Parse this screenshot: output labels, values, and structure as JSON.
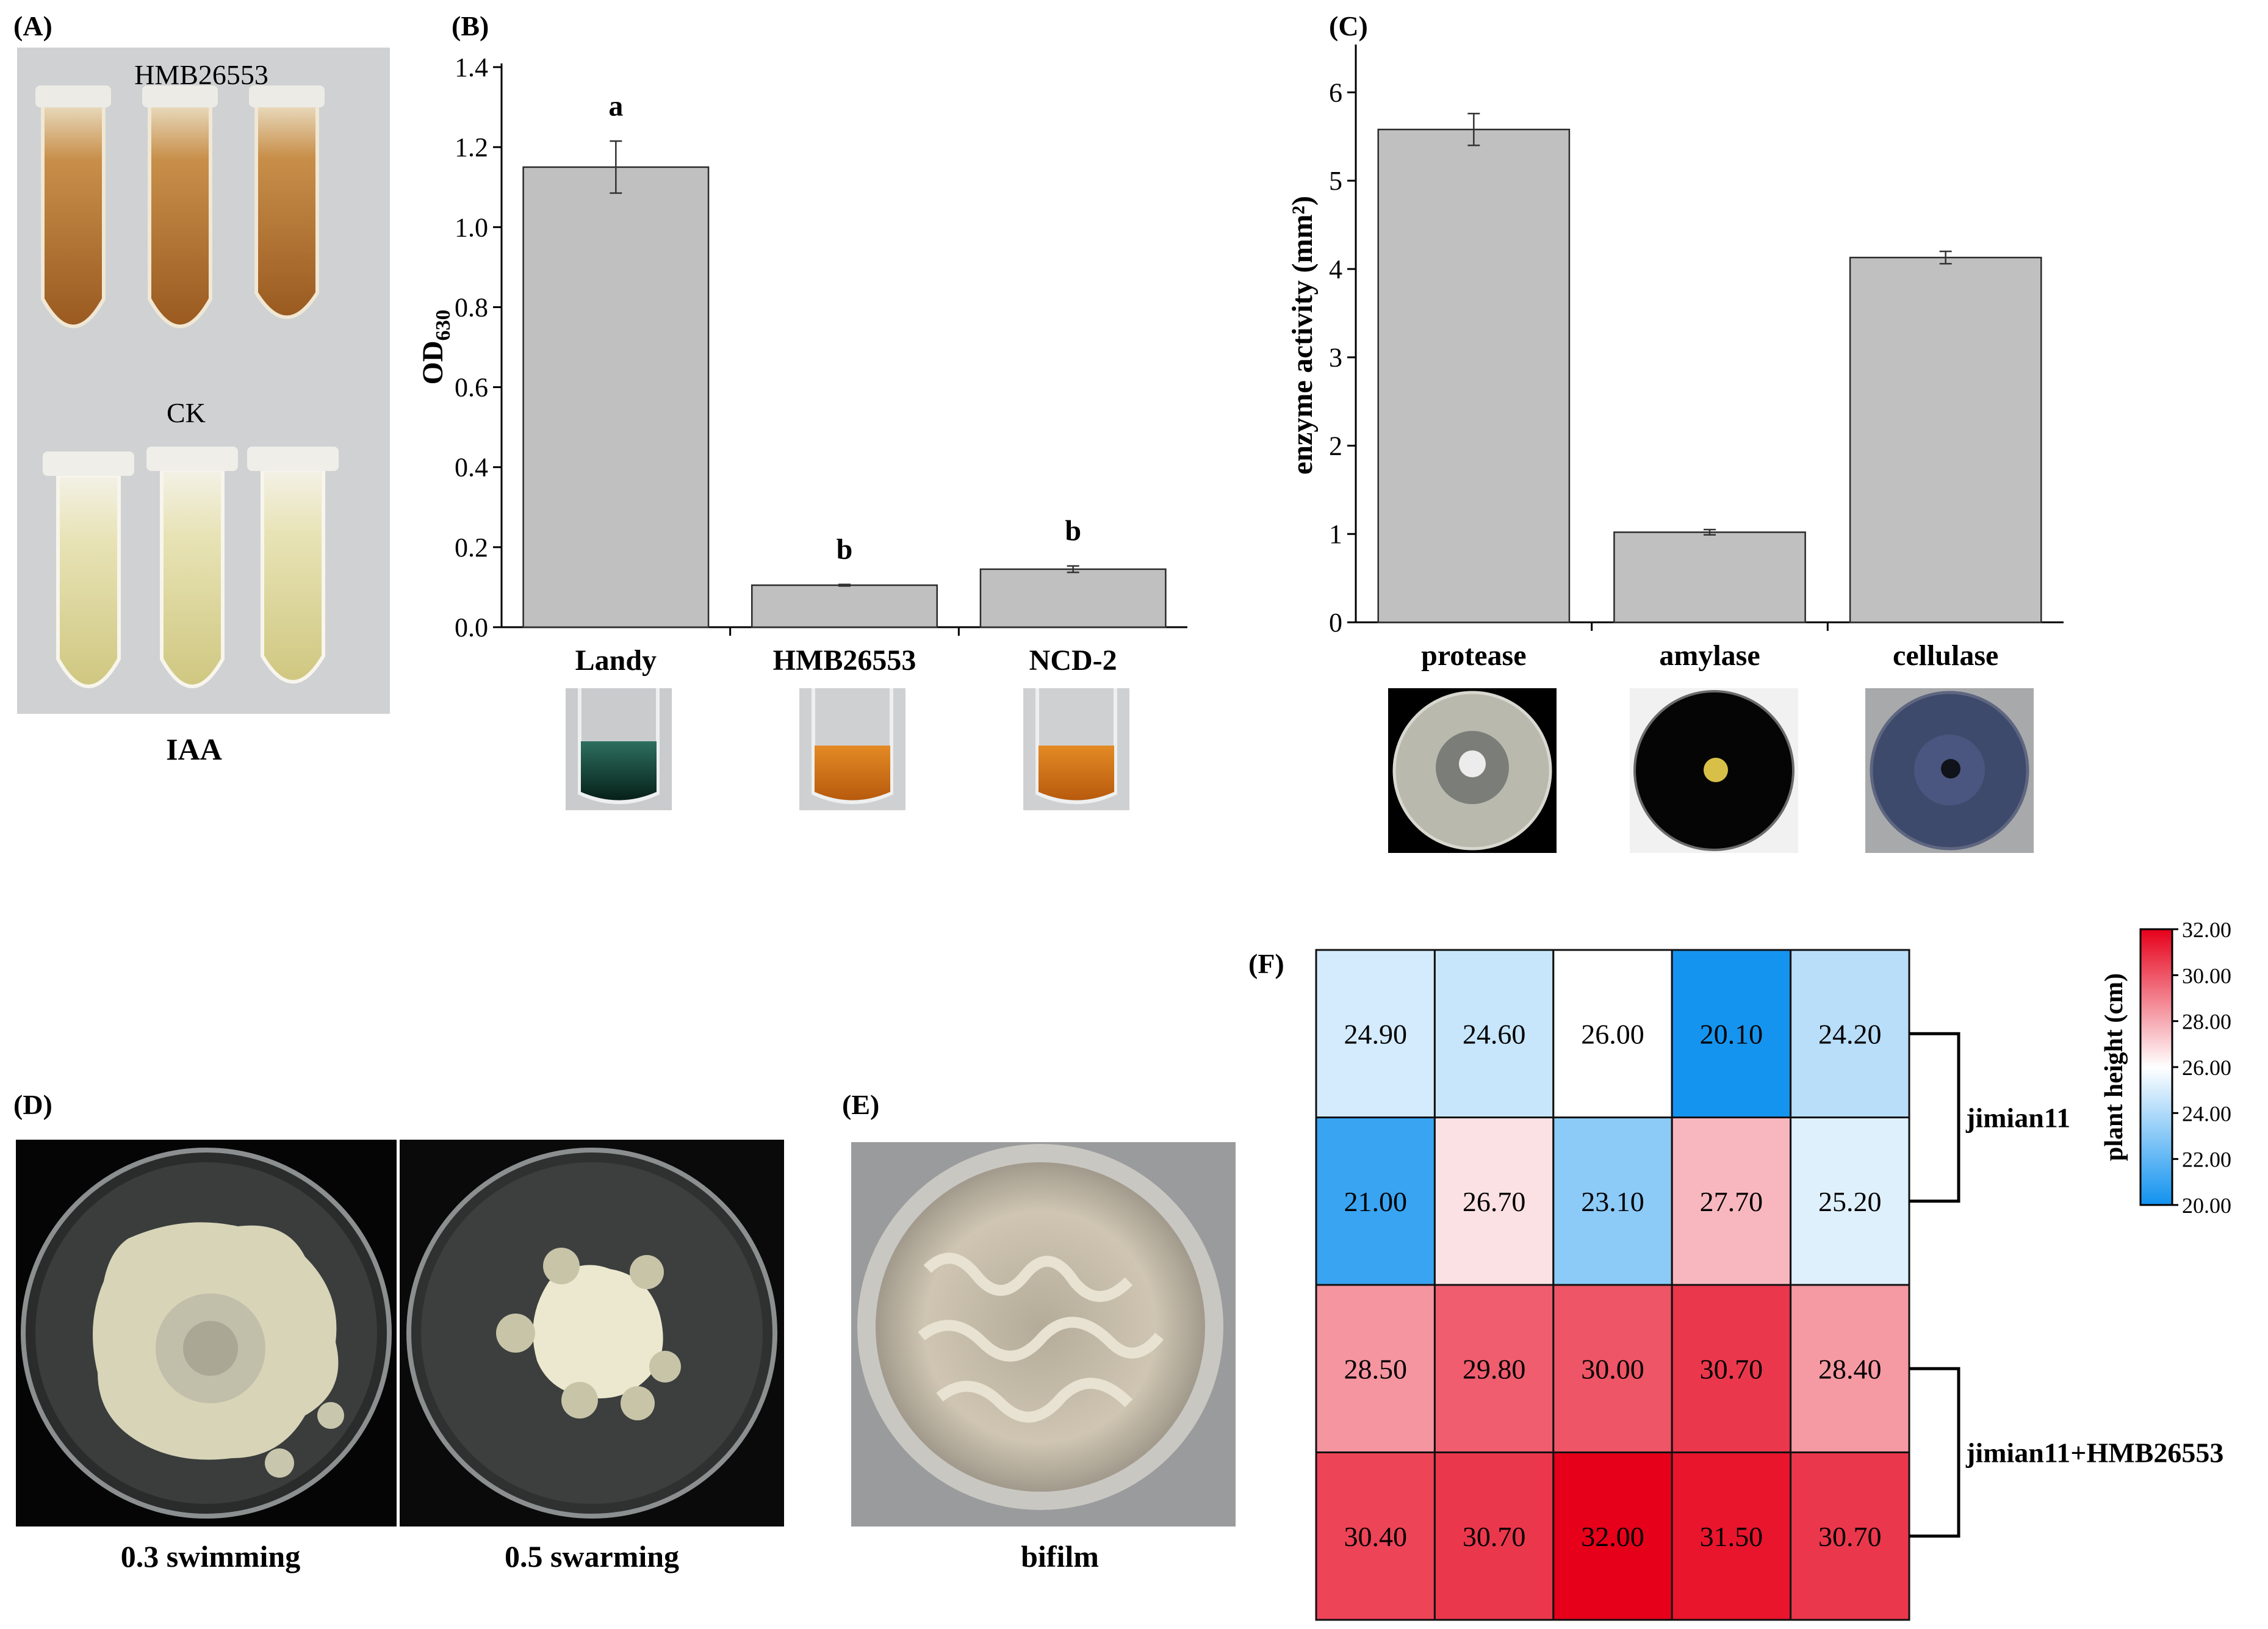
{
  "panels": {
    "A": {
      "letter": "(A)",
      "label_top": "HMB26553",
      "label_bottom": "CK",
      "caption": "IAA"
    },
    "B": {
      "letter": "(B)"
    },
    "C": {
      "letter": "(C)"
    },
    "D": {
      "letter": "(D)",
      "caption_left": "0.3 swimming",
      "caption_right": "0.5 swarming"
    },
    "E": {
      "letter": "(E)",
      "caption": "bifilm"
    },
    "F": {
      "letter": "(F)"
    }
  },
  "colors": {
    "bar_fill": "#c0c0c0",
    "heat_low": "#1192ef",
    "heat_mid": "#ffffff",
    "heat_high": "#e6001a",
    "dark_background": "#000000"
  },
  "chart_data": [
    {
      "panel": "B",
      "type": "bar",
      "categories": [
        "Landy",
        "HMB26553",
        "NCD-2"
      ],
      "values": [
        1.15,
        0.105,
        0.145
      ],
      "errors": [
        0.065,
        0.002,
        0.008
      ],
      "significance": [
        "a",
        "b",
        "b"
      ],
      "ylabel": "OD",
      "ylabel_sub": "630",
      "ylim": [
        0,
        1.4
      ],
      "yticks": [
        "0.0",
        "0.2",
        "0.4",
        "0.6",
        "0.8",
        "1.0",
        "1.2",
        "1.4"
      ]
    },
    {
      "panel": "C",
      "type": "bar",
      "categories": [
        "protease",
        "amylase",
        "cellulase"
      ],
      "values": [
        5.58,
        1.02,
        4.13
      ],
      "errors": [
        0.18,
        0.03,
        0.07
      ],
      "ylabel": "enzyme activity (mm²)",
      "ylim": [
        0,
        6.5
      ],
      "yticks": [
        "0",
        "1",
        "2",
        "3",
        "4",
        "5",
        "6"
      ]
    },
    {
      "panel": "F",
      "type": "heatmap",
      "rows": [
        [
          24.9,
          24.6,
          26.0,
          20.1,
          24.2
        ],
        [
          21.0,
          26.7,
          23.1,
          27.7,
          25.2
        ],
        [
          28.5,
          29.8,
          30.0,
          30.7,
          28.4
        ],
        [
          30.4,
          30.7,
          32.0,
          31.5,
          30.7
        ]
      ],
      "groups": [
        "jimian11",
        "jimian11+HMB26553"
      ],
      "colorbar_label": "plant height (cm)",
      "colorbar_ticks": [
        "20.00",
        "22.00",
        "24.00",
        "26.00",
        "28.00",
        "30.00",
        "32.00"
      ],
      "vmin": 20,
      "vmax": 32
    }
  ]
}
